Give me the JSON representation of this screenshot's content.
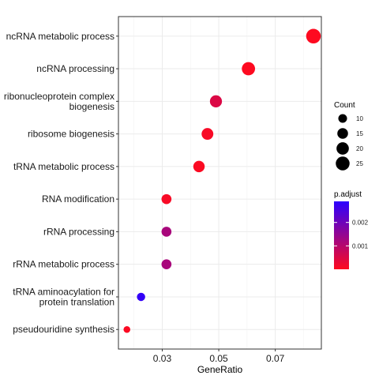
{
  "chart_data": {
    "type": "scatter",
    "xlabel": "GeneRatio",
    "ylabel": "",
    "xlim": [
      0.0145,
      0.0863
    ],
    "xticks": [
      0.03,
      0.05,
      0.07
    ],
    "xtick_labels": [
      "0.03",
      "0.05",
      "0.07"
    ],
    "grid": true,
    "legend_position": "right",
    "categories": [
      "pseudouridine synthesis",
      "tRNA aminoacylation for\nprotein translation",
      "rRNA metabolic process",
      "rRNA processing",
      "RNA modification",
      "tRNA metabolic process",
      "ribosome biogenesis",
      "ribonucleoprotein complex\nbiogenesis",
      "ncRNA processing",
      "ncRNA metabolic process"
    ],
    "points": [
      {
        "category": "pseudouridine synthesis",
        "x": 0.0175,
        "count": 6,
        "p_adjust": 5e-05
      },
      {
        "category": "tRNA aminoacylation for\nprotein translation",
        "x": 0.0225,
        "count": 9,
        "p_adjust": 0.0028
      },
      {
        "category": "rRNA metabolic process",
        "x": 0.0315,
        "count": 13,
        "p_adjust": 0.0012
      },
      {
        "category": "rRNA processing",
        "x": 0.0315,
        "count": 13,
        "p_adjust": 0.0012
      },
      {
        "category": "RNA modification",
        "x": 0.0315,
        "count": 13,
        "p_adjust": 0.0001
      },
      {
        "category": "tRNA metabolic process",
        "x": 0.043,
        "count": 17,
        "p_adjust": 5e-05
      },
      {
        "category": "ribosome biogenesis",
        "x": 0.046,
        "count": 18,
        "p_adjust": 0.0001
      },
      {
        "category": "ribonucleoprotein complex\nbiogenesis",
        "x": 0.049,
        "count": 19,
        "p_adjust": 0.0005
      },
      {
        "category": "ncRNA processing",
        "x": 0.0605,
        "count": 23,
        "p_adjust": 3e-05
      },
      {
        "category": "ncRNA metabolic process",
        "x": 0.0835,
        "count": 28,
        "p_adjust": 2e-05
      }
    ],
    "size_legend": {
      "title": "Count",
      "values": [
        10,
        15,
        20,
        25
      ],
      "labels": [
        "10",
        "15",
        "20",
        "25"
      ]
    },
    "color_legend": {
      "title": "p.adjust",
      "range": [
        0.0,
        0.0029
      ],
      "ticks": [
        0.001,
        0.002
      ],
      "tick_labels": [
        "0.001",
        "0.002"
      ],
      "low_color": "#ff0a1e",
      "high_color": "#2c00ff"
    }
  }
}
